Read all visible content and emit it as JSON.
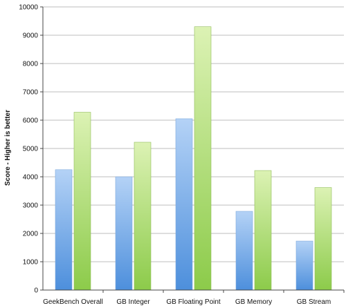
{
  "chart_data": {
    "type": "bar",
    "title": "",
    "xlabel": "",
    "ylabel": "Score - Higher is better",
    "ylim": [
      0,
      10000
    ],
    "yticks": [
      0,
      1000,
      2000,
      3000,
      4000,
      5000,
      6000,
      7000,
      8000,
      9000,
      10000
    ],
    "grid": true,
    "legend": "none",
    "categories": [
      "GeekBench Overall",
      "GB Integer",
      "GB Floating Point",
      "GB Memory",
      "GB Stream"
    ],
    "series": [
      {
        "color": "#8db8ee",
        "values": [
          4250,
          4000,
          6050,
          2780,
          1730
        ]
      },
      {
        "color": "#b9df84",
        "values": [
          6280,
          5220,
          9300,
          4220,
          3620
        ]
      }
    ]
  }
}
